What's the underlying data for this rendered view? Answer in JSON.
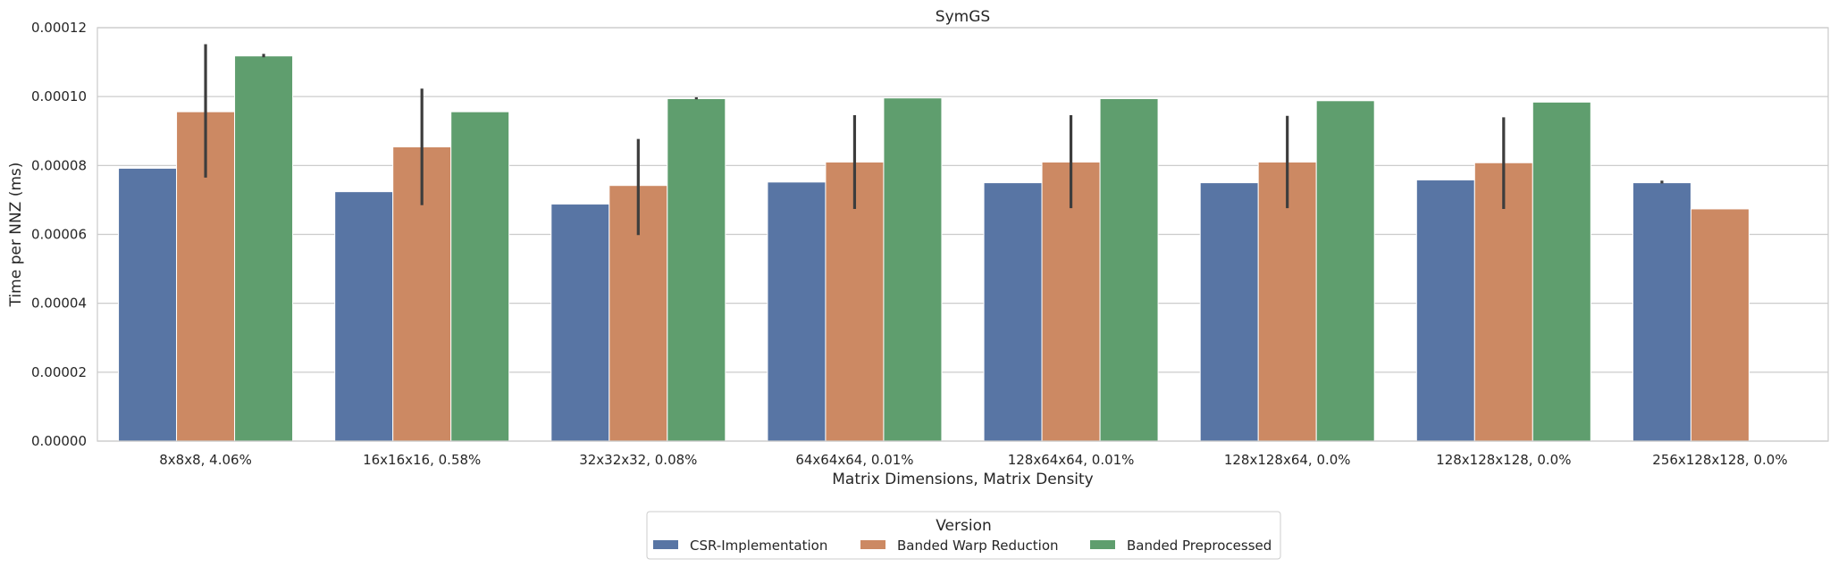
{
  "chart_data": {
    "type": "bar",
    "title": "SymGS",
    "xlabel": "Matrix Dimensions, Matrix Density",
    "ylabel": "Time per NNZ (ms)",
    "ylim": [
      0,
      0.00012
    ],
    "yticks": [
      0,
      2e-05,
      4e-05,
      6e-05,
      8e-05,
      0.0001,
      0.00012
    ],
    "ytick_labels": [
      "0.00000",
      "0.00002",
      "0.00004",
      "0.00006",
      "0.00008",
      "0.00010",
      "0.00012"
    ],
    "grid": true,
    "legend": {
      "title": "Version",
      "placement": "bottom-center"
    },
    "categories": [
      "8x8x8, 4.06%",
      "16x16x16, 0.58%",
      "32x32x32, 0.08%",
      "64x64x64, 0.01%",
      "128x64x64, 0.01%",
      "128x128x64, 0.0%",
      "128x128x128, 0.0%",
      "256x128x128, 0.0%"
    ],
    "series": [
      {
        "name": "CSR-Implementation",
        "color": "#5875a4",
        "values": [
          7.92e-05,
          7.24e-05,
          6.88e-05,
          7.52e-05,
          7.5e-05,
          7.5e-05,
          7.58e-05,
          7.5e-05
        ],
        "errors": [
          null,
          null,
          null,
          null,
          null,
          null,
          null,
          [
            7.48e-05,
            7.56e-05
          ]
        ]
      },
      {
        "name": "Banded Warp Reduction",
        "color": "#cc8963",
        "values": [
          9.56e-05,
          8.54e-05,
          7.42e-05,
          8.1e-05,
          8.1e-05,
          8.1e-05,
          8.08e-05,
          6.74e-05
        ],
        "errors": [
          [
            7.65e-05,
            0.0001152
          ],
          [
            6.85e-05,
            0.0001023
          ],
          [
            5.98e-05,
            8.77e-05
          ],
          [
            6.74e-05,
            9.46e-05
          ],
          [
            6.76e-05,
            9.46e-05
          ],
          [
            6.76e-05,
            9.44e-05
          ],
          [
            6.74e-05,
            9.4e-05
          ],
          null
        ]
      },
      {
        "name": "Banded Preprocessed",
        "color": "#5f9e6e",
        "values": [
          0.0001118,
          9.56e-05,
          9.94e-05,
          9.96e-05,
          9.94e-05,
          9.88e-05,
          9.84e-05,
          null
        ],
        "errors": [
          [
            0.0001114,
            0.0001124
          ],
          null,
          [
            9.92e-05,
            9.98e-05
          ],
          null,
          null,
          null,
          null,
          null
        ]
      }
    ]
  }
}
